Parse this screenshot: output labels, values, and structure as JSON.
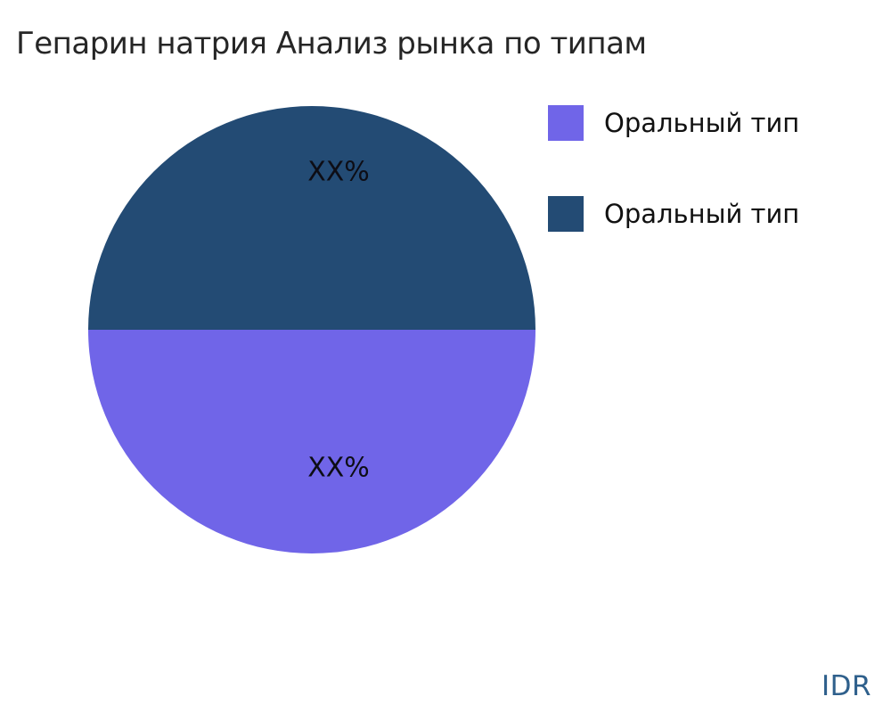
{
  "branding": {
    "watermark": "IDR"
  },
  "colors": {
    "background": "#FFFFFF",
    "title_text": "#262626",
    "slice_label_text": "#0D0D15",
    "legend_text": "#111111",
    "watermark_text": "#2F608C"
  },
  "chart_data": {
    "type": "pie",
    "title": "Гепарин натрия Анализ рынка по типам",
    "slices": [
      {
        "label": "Оральный тип",
        "value": 50,
        "display_value": "XX%",
        "color": "#7065E8"
      },
      {
        "label": "Оральный тип",
        "value": 50,
        "display_value": "XX%",
        "color": "#234B74"
      }
    ],
    "start_angle_deg": 90,
    "direction": "clockwise",
    "legend_position": "right",
    "gridlines": false
  }
}
